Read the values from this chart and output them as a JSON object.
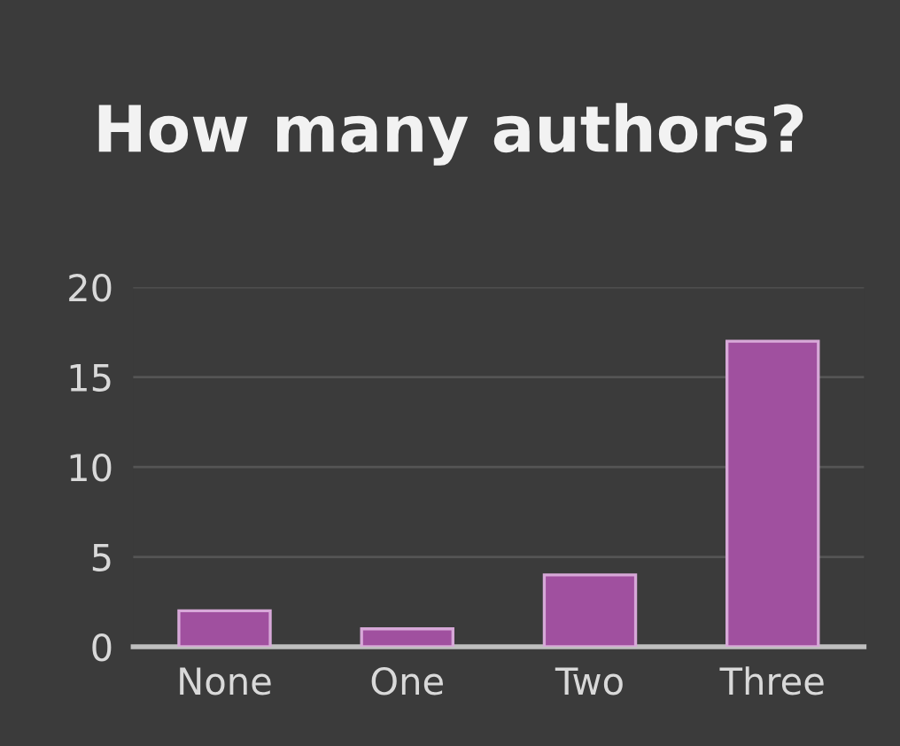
{
  "chart_data": {
    "type": "bar",
    "title": "How many authors?",
    "categories": [
      "None",
      "One",
      "Two",
      "Three"
    ],
    "values": [
      2,
      1,
      4,
      17
    ],
    "color": "#a0509f",
    "ylim": [
      0,
      20
    ],
    "yticks": [
      0,
      5,
      10,
      15,
      20
    ],
    "grid": "y"
  }
}
